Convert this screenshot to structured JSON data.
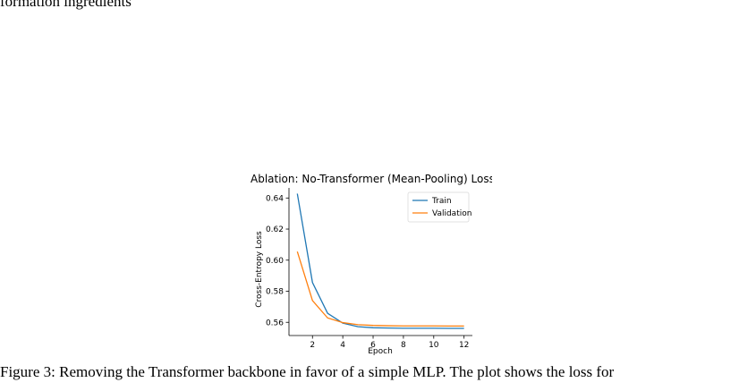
{
  "page": {
    "top_text": "formation ingredients",
    "caption": "Figure 3: Removing the Transformer backbone in favor of a simple MLP. The plot shows the loss for"
  },
  "chart_data": {
    "type": "line",
    "title": "Ablation: No-Transformer (Mean-Pooling) Loss Cu",
    "xlabel": "Epoch",
    "ylabel": "Cross-Entropy Loss",
    "x": [
      1,
      2,
      3,
      4,
      5,
      6,
      7,
      8,
      9,
      10,
      11,
      12
    ],
    "xlim": [
      0.45,
      12.55
    ],
    "ylim": [
      0.5515,
      0.6465
    ],
    "xticks": [
      2,
      4,
      6,
      8,
      10,
      12
    ],
    "yticks": [
      0.56,
      0.58,
      0.6,
      0.62,
      0.64
    ],
    "ytick_labels": [
      "0.56",
      "0.58",
      "0.60",
      "0.62",
      "0.64"
    ],
    "grid": false,
    "legend_position": "top-right",
    "series": [
      {
        "name": "Train",
        "color": "#1f77b4",
        "values": [
          0.6428,
          0.5856,
          0.5658,
          0.5595,
          0.5572,
          0.5565,
          0.5563,
          0.5562,
          0.5562,
          0.5562,
          0.5561,
          0.5561
        ]
      },
      {
        "name": "Validation",
        "color": "#ff7f0e",
        "values": [
          0.6055,
          0.574,
          0.5628,
          0.5598,
          0.5585,
          0.558,
          0.5578,
          0.5577,
          0.5577,
          0.5577,
          0.5576,
          0.5576
        ]
      }
    ]
  }
}
